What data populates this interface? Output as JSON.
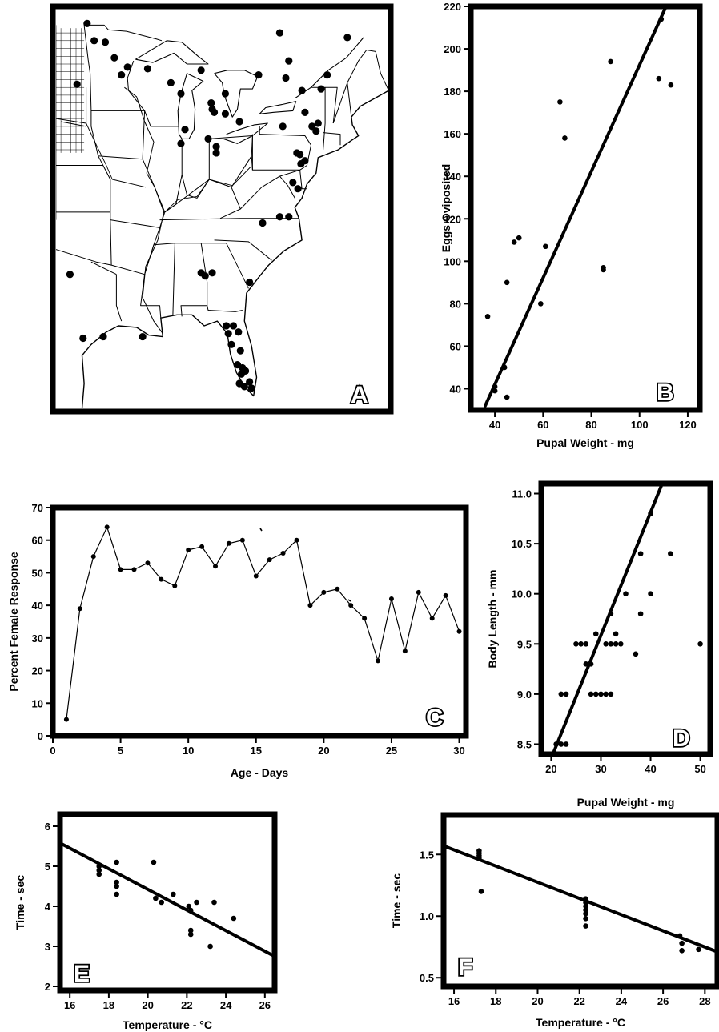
{
  "chart_data": [
    {
      "panel": "A",
      "type": "map",
      "label": "A",
      "map_points": [
        [
          -96.9,
          49.1
        ],
        [
          -96.2,
          48.0
        ],
        [
          -95.1,
          47.9
        ],
        [
          -94.2,
          46.9
        ],
        [
          -92.9,
          46.3
        ],
        [
          -93.5,
          45.8
        ],
        [
          -97.9,
          45.2
        ],
        [
          -90.9,
          46.2
        ],
        [
          -88.6,
          45.3
        ],
        [
          -85.6,
          46.1
        ],
        [
          -83.2,
          44.6
        ],
        [
          -84.6,
          44.0
        ],
        [
          -84.5,
          43.6
        ],
        [
          -84.3,
          43.4
        ],
        [
          -83.2,
          43.3
        ],
        [
          -81.8,
          42.8
        ],
        [
          -87.6,
          44.6
        ],
        [
          -87.2,
          42.3
        ],
        [
          -87.6,
          41.4
        ],
        [
          -84.1,
          41.2
        ],
        [
          -84.1,
          40.8
        ],
        [
          -84.9,
          41.7
        ],
        [
          -77.8,
          48.5
        ],
        [
          -76.9,
          46.7
        ],
        [
          -77.2,
          45.6
        ],
        [
          -79.9,
          45.8
        ],
        [
          -71.1,
          48.2
        ],
        [
          -73.1,
          45.8
        ],
        [
          -73.7,
          44.9
        ],
        [
          -75.6,
          44.8
        ],
        [
          -75.3,
          43.4
        ],
        [
          -74.0,
          42.7
        ],
        [
          -74.6,
          42.5
        ],
        [
          -74.2,
          42.2
        ],
        [
          -77.5,
          42.5
        ],
        [
          -76.1,
          40.8
        ],
        [
          -75.8,
          40.7
        ],
        [
          -75.3,
          40.3
        ],
        [
          -75.7,
          40.1
        ],
        [
          -76.5,
          38.9
        ],
        [
          -76.0,
          38.5
        ],
        [
          -77.8,
          36.7
        ],
        [
          -76.9,
          36.7
        ],
        [
          -79.5,
          36.3
        ],
        [
          -85.6,
          33.1
        ],
        [
          -85.2,
          32.9
        ],
        [
          -84.5,
          33.1
        ],
        [
          -80.8,
          32.5
        ],
        [
          -98.6,
          33.0
        ],
        [
          -97.3,
          28.9
        ],
        [
          -95.3,
          29.0
        ],
        [
          -91.4,
          29.0
        ],
        [
          -83.1,
          29.7
        ],
        [
          -82.4,
          29.7
        ],
        [
          -82.9,
          29.2
        ],
        [
          -81.9,
          29.3
        ],
        [
          -82.6,
          28.5
        ],
        [
          -81.7,
          28.1
        ],
        [
          -82.0,
          27.2
        ],
        [
          -81.5,
          27.0
        ],
        [
          -81.2,
          26.8
        ],
        [
          -81.6,
          26.6
        ],
        [
          -80.8,
          26.1
        ],
        [
          -81.8,
          26.0
        ],
        [
          -81.3,
          25.8
        ],
        [
          -80.6,
          25.7
        ]
      ]
    },
    {
      "panel": "B",
      "type": "scatter",
      "label": "B",
      "xlabel": "Pupal Weight - mg",
      "ylabel": "Eggs Oviposited",
      "xlim": [
        30,
        125
      ],
      "ylim": [
        30,
        220
      ],
      "xticks": [
        40,
        60,
        80,
        100,
        120
      ],
      "yticks": [
        40,
        60,
        80,
        100,
        120,
        140,
        160,
        180,
        200,
        220
      ],
      "points": [
        [
          37,
          74
        ],
        [
          40,
          41
        ],
        [
          40,
          39
        ],
        [
          45,
          36
        ],
        [
          44,
          50
        ],
        [
          45,
          90
        ],
        [
          48,
          109
        ],
        [
          50,
          111
        ],
        [
          59,
          80
        ],
        [
          61,
          107
        ],
        [
          67,
          175
        ],
        [
          69,
          158
        ],
        [
          85,
          97
        ],
        [
          85,
          96
        ],
        [
          88,
          194
        ],
        [
          108,
          186
        ],
        [
          109,
          214
        ],
        [
          113,
          183
        ]
      ],
      "trend": [
        [
          36,
          32
        ],
        [
          111,
          220
        ]
      ]
    },
    {
      "panel": "C",
      "type": "line",
      "label": "C",
      "xlabel": "Age - Days",
      "ylabel": "Percent Female Response",
      "xlim": [
        0,
        30.5
      ],
      "ylim": [
        0,
        70
      ],
      "xticks": [
        0,
        5,
        10,
        15,
        20,
        25,
        30
      ],
      "yticks": [
        0,
        10,
        20,
        30,
        40,
        50,
        60,
        70
      ],
      "x": [
        1,
        2,
        3,
        4,
        5,
        6,
        7,
        8,
        9,
        10,
        11,
        12,
        13,
        14,
        15,
        16,
        17,
        18,
        19,
        20,
        21,
        22,
        23,
        24,
        25,
        26,
        27,
        28,
        29,
        30
      ],
      "y": [
        5,
        39,
        55,
        64,
        51,
        51,
        53,
        48,
        46,
        57,
        58,
        52,
        59,
        60,
        49,
        54,
        56,
        60,
        40,
        44,
        45,
        40,
        36,
        23,
        42,
        26,
        44,
        36,
        43,
        32
      ]
    },
    {
      "panel": "D",
      "type": "scatter",
      "label": "D",
      "xlabel": "Pupal Weight - mg",
      "ylabel": "Body Length - mm",
      "xlim": [
        18,
        52
      ],
      "ylim": [
        8.4,
        11.1
      ],
      "xticks": [
        20,
        30,
        40,
        50
      ],
      "yticks": [
        "8.5",
        "9.0",
        "9.5",
        "10.0",
        "10.5",
        "11.0"
      ],
      "points": [
        [
          21,
          8.5
        ],
        [
          22,
          8.5
        ],
        [
          23,
          8.5
        ],
        [
          22,
          9.0
        ],
        [
          23,
          9.0
        ],
        [
          25,
          9.5
        ],
        [
          26,
          9.5
        ],
        [
          27,
          9.5
        ],
        [
          27,
          9.3
        ],
        [
          28,
          9.3
        ],
        [
          29,
          9.6
        ],
        [
          28,
          9.0
        ],
        [
          29,
          9.0
        ],
        [
          30,
          9.0
        ],
        [
          31,
          9.0
        ],
        [
          32,
          9.0
        ],
        [
          31,
          9.5
        ],
        [
          32,
          9.5
        ],
        [
          33,
          9.5
        ],
        [
          34,
          9.5
        ],
        [
          32,
          9.8
        ],
        [
          33,
          9.6
        ],
        [
          35,
          10.0
        ],
        [
          37,
          9.4
        ],
        [
          38,
          9.8
        ],
        [
          38,
          10.4
        ],
        [
          40,
          10.0
        ],
        [
          40,
          10.8
        ],
        [
          44,
          10.4
        ],
        [
          50,
          9.5
        ]
      ],
      "trend": [
        [
          20.5,
          8.42
        ],
        [
          42.5,
          11.12
        ]
      ]
    },
    {
      "panel": "E",
      "type": "scatter",
      "label": "E",
      "xlabel": "Temperature - °C",
      "ylabel": "Time - sec",
      "xlim": [
        15.5,
        26.5
      ],
      "ylim": [
        1.9,
        6.3
      ],
      "xticks": [
        16,
        18,
        20,
        22,
        24,
        26
      ],
      "yticks": [
        2,
        3,
        4,
        5,
        6
      ],
      "points": [
        [
          17.5,
          5.0
        ],
        [
          17.5,
          4.9
        ],
        [
          17.5,
          4.8
        ],
        [
          18.4,
          5.1
        ],
        [
          18.4,
          4.6
        ],
        [
          18.4,
          4.5
        ],
        [
          18.4,
          4.3
        ],
        [
          20.3,
          5.1
        ],
        [
          20.4,
          4.2
        ],
        [
          20.7,
          4.1
        ],
        [
          21.3,
          4.3
        ],
        [
          22.1,
          4.0
        ],
        [
          22.2,
          3.9
        ],
        [
          22.2,
          3.4
        ],
        [
          22.2,
          3.3
        ],
        [
          22.5,
          4.1
        ],
        [
          23.2,
          3.0
        ],
        [
          23.4,
          4.1
        ],
        [
          24.4,
          3.7
        ]
      ],
      "trend": [
        [
          15.5,
          5.58
        ],
        [
          26.5,
          2.75
        ]
      ]
    },
    {
      "panel": "F",
      "type": "scatter",
      "label": "F",
      "xlabel": "Temperature - °C",
      "ylabel": "Time - sec",
      "xlim": [
        15.5,
        28.6
      ],
      "ylim": [
        0.43,
        1.82
      ],
      "xticks": [
        16,
        18,
        20,
        22,
        24,
        26,
        28
      ],
      "yticks": [
        "0.5",
        "1.0",
        "1.5"
      ],
      "points": [
        [
          17.2,
          1.53
        ],
        [
          17.2,
          1.51
        ],
        [
          17.2,
          1.49
        ],
        [
          17.2,
          1.47
        ],
        [
          17.3,
          1.2
        ],
        [
          22.3,
          1.14
        ],
        [
          22.3,
          1.11
        ],
        [
          22.3,
          1.08
        ],
        [
          22.3,
          1.05
        ],
        [
          22.3,
          1.02
        ],
        [
          22.3,
          0.98
        ],
        [
          22.3,
          0.92
        ],
        [
          26.8,
          0.84
        ],
        [
          26.9,
          0.78
        ],
        [
          26.9,
          0.72
        ],
        [
          27.7,
          0.73
        ]
      ],
      "trend": [
        [
          15.5,
          1.57
        ],
        [
          28.6,
          0.71
        ]
      ]
    }
  ]
}
